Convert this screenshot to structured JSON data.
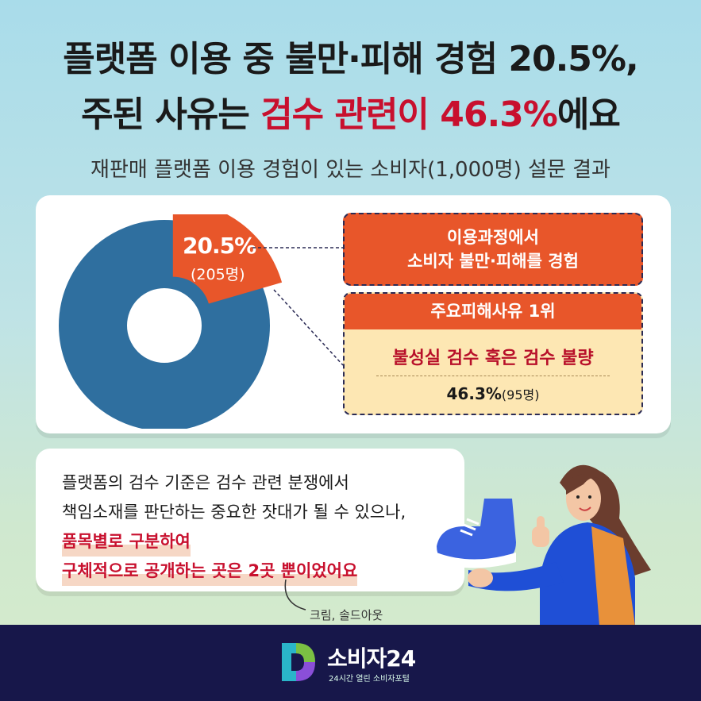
{
  "headline": {
    "line1": "플랫폼 이용 중 불만·피해 경험 20.5%,",
    "line2_prefix": "주된 사유는 ",
    "line2_highlight": "검수 관련이 46.3%",
    "line2_suffix": "에요"
  },
  "subtitle": "재판매 플랫폼 이용 경험이 있는 소비자(1,000명) 설문 결과",
  "donut": {
    "slice_percent": 20.5,
    "slice_label": "20.5%",
    "slice_count": "(205명)",
    "colors": {
      "base": "#2f6f9f",
      "slice": "#e8562a"
    }
  },
  "experience_box": {
    "line1": "이용과정에서",
    "line2": "소비자 불만·피해를 경험"
  },
  "top_reason": {
    "header": "주요피해사유 1위",
    "reason": "불성실 검수 혹은 검수 불량",
    "value": "46.3%",
    "count": "(95명)"
  },
  "body": {
    "line1": "플랫폼의 검수 기준은 검수 관련 분쟁에서",
    "line2": "책임소재를 판단하는 중요한 잣대가 될 수 있으나,",
    "highlight1": "품목별로 구분하여",
    "highlight2": "구체적으로 공개하는 곳은 2곳 뿐이었어요"
  },
  "credit": "크림, 솔드아웃",
  "footer": {
    "brand": "소비자24",
    "tagline": "24시간 열린 소비자포털"
  },
  "colors": {
    "accent_red": "#c8102e",
    "accent_orange": "#e8562a",
    "footer_bg": "#17174a",
    "cream": "#fde7b3"
  }
}
